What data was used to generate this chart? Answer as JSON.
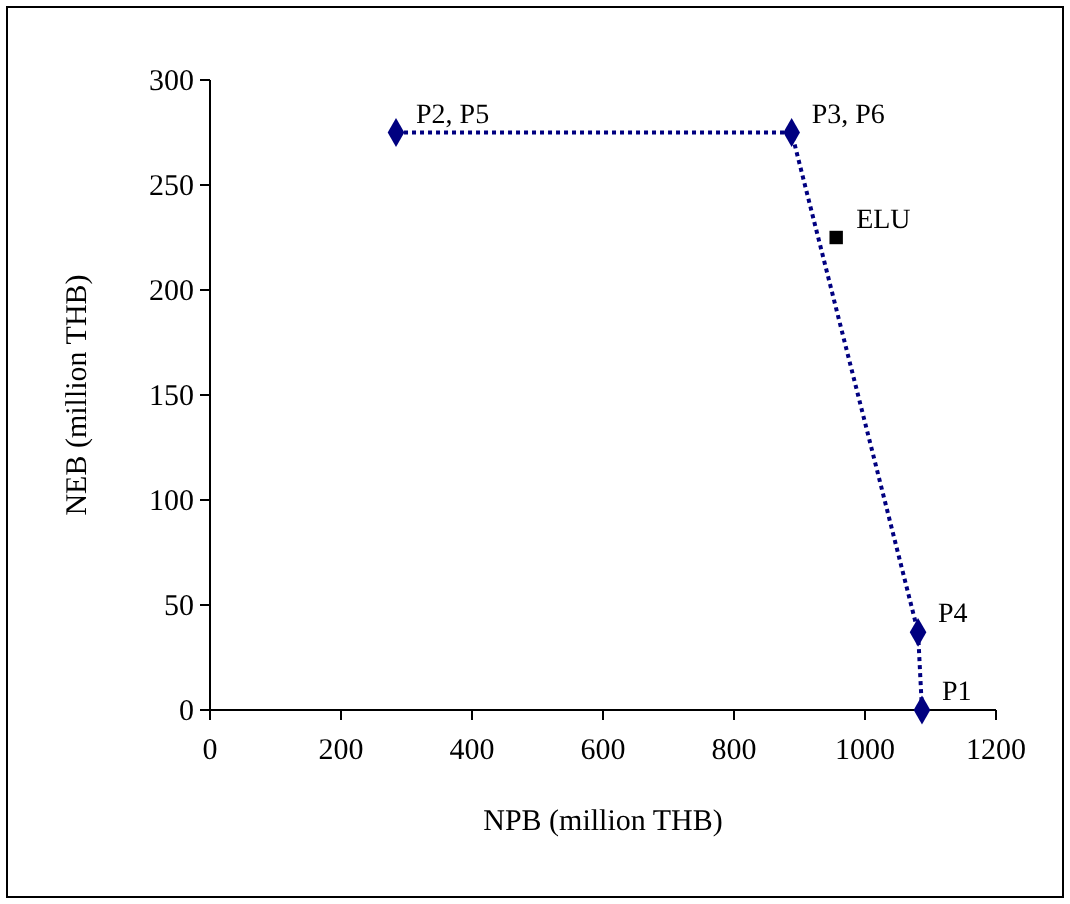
{
  "chart_data": {
    "type": "line",
    "xlabel": "NPB (million THB)",
    "ylabel": "NEB (million THB)",
    "xlim": [
      0,
      1200
    ],
    "xticks": [
      0,
      200,
      400,
      600,
      800,
      1000,
      1200
    ],
    "ylim": [
      0,
      300
    ],
    "yticks": [
      0,
      50,
      100,
      150,
      200,
      250,
      300
    ],
    "grid": false,
    "series": [
      {
        "color": "#000080",
        "x": [
          284,
          888,
          1081,
          1087
        ],
        "values": [
          275,
          275,
          37,
          0
        ],
        "marker": "diamond",
        "line_style": "dotted"
      },
      {
        "type": "scatter",
        "color": "#000000",
        "x": [
          956
        ],
        "values": [
          225
        ],
        "marker": "square"
      }
    ],
    "annotations": [
      {
        "text": "P2, P5",
        "x": 284,
        "y": 275
      },
      {
        "text": "P3, P6",
        "x": 888,
        "y": 275
      },
      {
        "text": "ELU",
        "x": 956,
        "y": 225
      },
      {
        "text": "P4",
        "x": 1081,
        "y": 37
      },
      {
        "text": "P1",
        "x": 1087,
        "y": 0
      }
    ]
  }
}
